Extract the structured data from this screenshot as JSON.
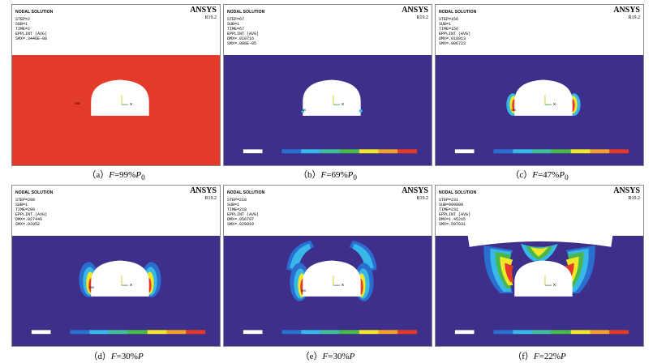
{
  "colors": {
    "background_red": "#e33a2a",
    "background_blue": "#3d2f8a",
    "white_opening": "#ffffff"
  },
  "panels": [
    {
      "id": "a",
      "title": "NODAL SOLUTION",
      "lines": [
        "STEP=2",
        "SUB=1",
        "TIME=2",
        "EPPLINT (AVG)",
        "SMX=.3446E-08"
      ],
      "brand": "ANSYS",
      "version": "R19.2",
      "caption": "（a）F=99%P0",
      "marker": "MN"
    },
    {
      "id": "b",
      "title": "NODAL SOLUTION",
      "lines": [
        "STEP=67",
        "SUB=1",
        "TIME=67",
        "EPPLINT (AVG)",
        "DMX=.010716",
        "SMX=.806E-05"
      ],
      "brand": "ANSYS",
      "version": "R19.2",
      "caption": "（b）F=69%P0",
      "marker": "MX"
    },
    {
      "id": "c",
      "title": "NODAL SOLUTION",
      "lines": [
        "STEP=156",
        "SUB=1",
        "TIME=156",
        "EPPLINT (AVG)",
        "DMX=.018913",
        "SMX=.006723"
      ],
      "brand": "ANSYS",
      "version": "R19.2",
      "caption": "（c）F=47%P0",
      "marker": "MX"
    },
    {
      "id": "d",
      "title": "NODAL SOLUTION",
      "lines": [
        "STEP=209",
        "SUB=1",
        "TIME=209",
        "EPPLINT (AVG)",
        "DMX=.027446",
        "SMX=.02052"
      ],
      "brand": "ANSYS",
      "version": "R19.2",
      "caption": "（d）F=30%P",
      "marker": "MX"
    },
    {
      "id": "e",
      "title": "NODAL SOLUTION",
      "lines": [
        "STEP=218",
        "SUB=1",
        "TIME=218",
        "EPPLINT (AVG)",
        "DMX=.056707",
        "SMX=.029919"
      ],
      "brand": "ANSYS",
      "version": "R19.2",
      "caption": "（e）F=30%P",
      "marker": "MX"
    },
    {
      "id": "f",
      "title": "NODAL SOLUTION",
      "lines": [
        "STEP=231",
        "SUB=999999",
        "TIME=231",
        "EPPLINT (AVG)",
        "DMX=1.45215",
        "SMX=.597031"
      ],
      "brand": "ANSYS",
      "version": "R19.2",
      "caption": "（f）F=22%P",
      "marker": "MX"
    }
  ],
  "captions": {
    "a": {
      "label": "（a）",
      "F": "F",
      "eq": "=99%",
      "P": "P",
      "sub": "0"
    },
    "b": {
      "label": "（b）",
      "F": "F",
      "eq": "=69%",
      "P": "P",
      "sub": "0"
    },
    "c": {
      "label": "（c）",
      "F": "F",
      "eq": "=47%",
      "P": "P",
      "sub": "0"
    },
    "d": {
      "label": "（d）",
      "F": "F",
      "eq": "=30%",
      "P": "P",
      "sub": ""
    },
    "e": {
      "label": "（e）",
      "F": "F",
      "eq": "=30%",
      "P": "P",
      "sub": ""
    },
    "f": {
      "label": "（f）",
      "F": "F",
      "eq": "=22%",
      "P": "P",
      "sub": ""
    }
  },
  "legend_colors": [
    "#ffffff",
    "#3d2f8a",
    "#2a6fd0",
    "#38b8e8",
    "#3fbf9a",
    "#49b848",
    "#9ad43a",
    "#f0e62a",
    "#f2a22c",
    "#e33a2a"
  ]
}
